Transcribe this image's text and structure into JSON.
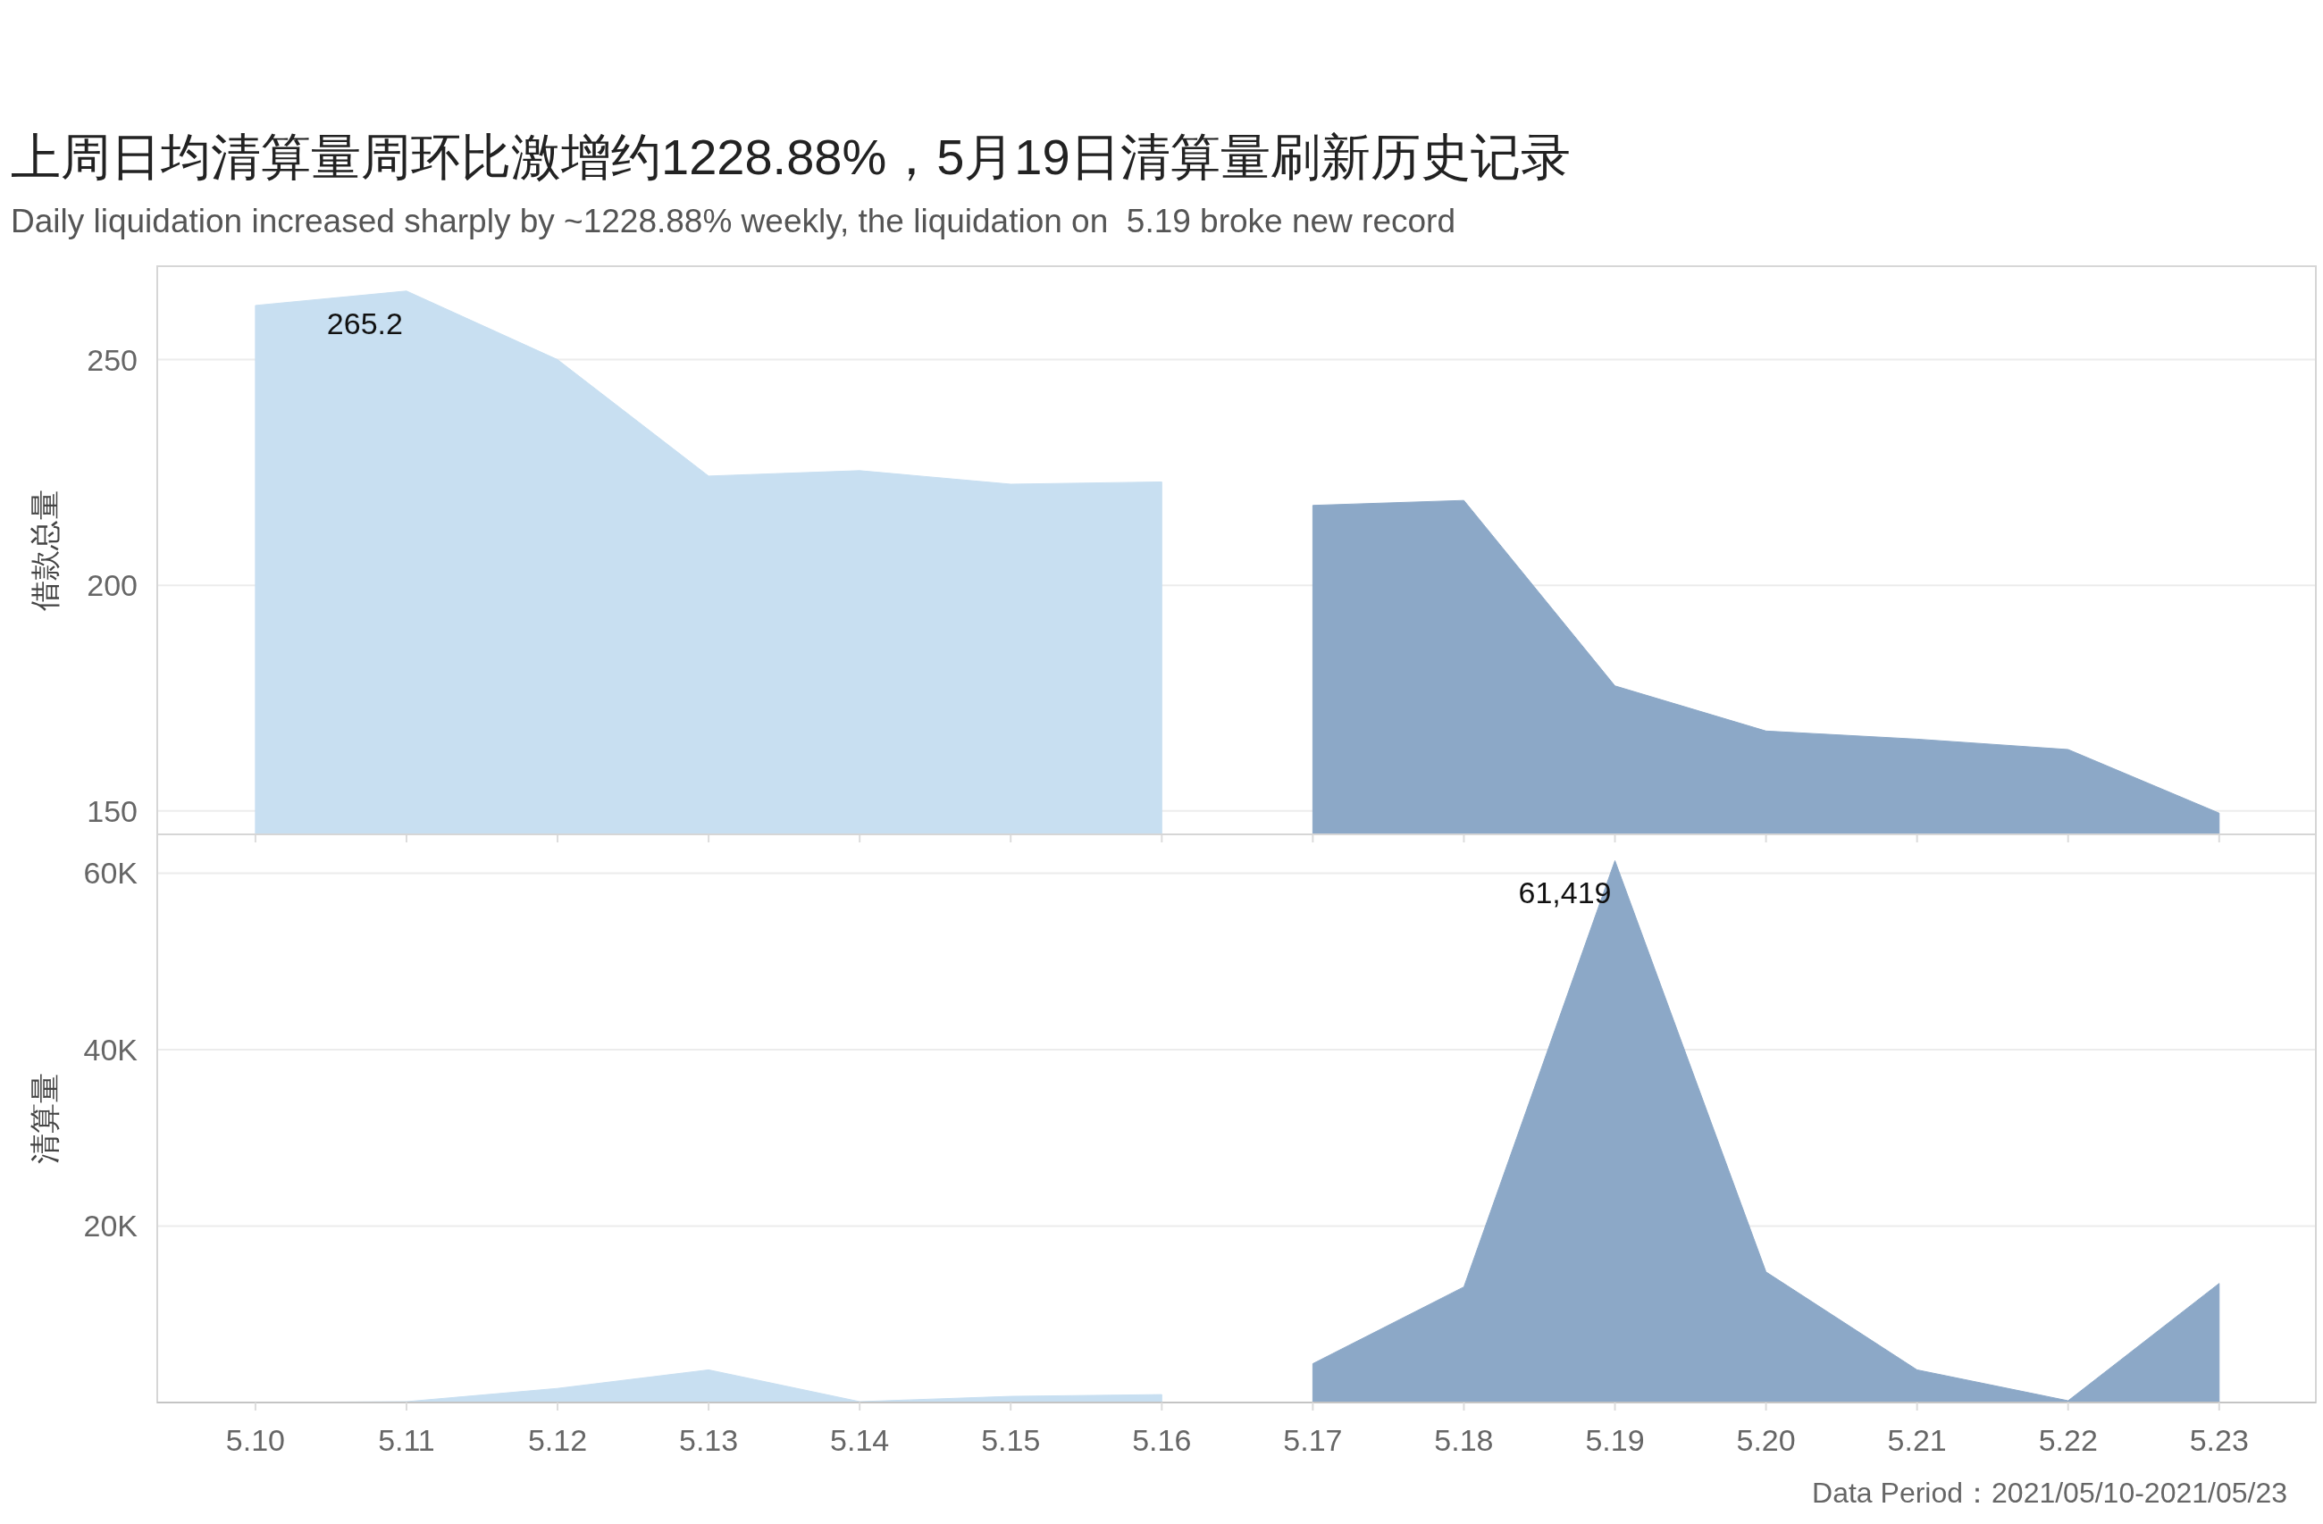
{
  "chart_data": [
    {
      "type": "area",
      "title": "上周日均清算量周环比激增约1228.88%，5月19日清算量刷新历史记录",
      "subtitle": "Daily liquidation increased sharply by ~1228.88% weekly, the liquidation on  5.19 broke new record",
      "ylabel": "借款总量",
      "categories": [
        "5.10",
        "5.11",
        "5.12",
        "5.13",
        "5.14",
        "5.15",
        "5.16",
        "5.17",
        "5.18",
        "5.19",
        "5.20",
        "5.21",
        "5.22",
        "5.23"
      ],
      "series": [
        {
          "color": "#c8dff1",
          "values": [
            262.0,
            265.2,
            250.0,
            224.2,
            225.4,
            222.4,
            222.9,
            null,
            null,
            null,
            null,
            null,
            null,
            null
          ],
          "value_labels": [
            null,
            "265.2",
            null,
            null,
            null,
            null,
            null,
            null,
            null,
            null,
            null,
            null,
            null,
            null
          ]
        },
        {
          "color": "#8ca8c7",
          "values": [
            null,
            null,
            null,
            null,
            null,
            null,
            null,
            217.7,
            218.8,
            177.7,
            167.7,
            165.9,
            163.6,
            149.5
          ]
        }
      ],
      "ylim": [
        144.8,
        270.7
      ],
      "yticks": [
        150,
        200,
        250
      ],
      "grid": "y",
      "tick_labels": "y"
    },
    {
      "type": "area",
      "ylabel": "清算量",
      "categories": [
        "5.10",
        "5.11",
        "5.12",
        "5.13",
        "5.14",
        "5.15",
        "5.16",
        "5.17",
        "5.18",
        "5.19",
        "5.20",
        "5.21",
        "5.22",
        "5.23"
      ],
      "series": [
        {
          "color": "#c8dff1",
          "values": [
            0,
            100,
            1600,
            3700,
            100,
            700,
            900,
            null,
            null,
            null,
            null,
            null,
            null,
            null
          ]
        },
        {
          "color": "#8ca8c7",
          "values": [
            null,
            null,
            null,
            null,
            null,
            null,
            null,
            4400,
            13100,
            61419,
            14800,
            3700,
            200,
            13500
          ],
          "value_labels": [
            null,
            null,
            null,
            null,
            null,
            null,
            null,
            null,
            null,
            "61,419",
            null,
            null,
            null,
            null
          ]
        }
      ],
      "ylim": [
        0,
        64400
      ],
      "yticks": [
        {
          "value": 20000,
          "label": "20K"
        },
        {
          "value": 40000,
          "label": "40K"
        },
        {
          "value": 60000,
          "label": "60K"
        }
      ],
      "grid": "y",
      "annotations": [
        "Data Period：2021/05/10-2021/05/23"
      ]
    }
  ]
}
